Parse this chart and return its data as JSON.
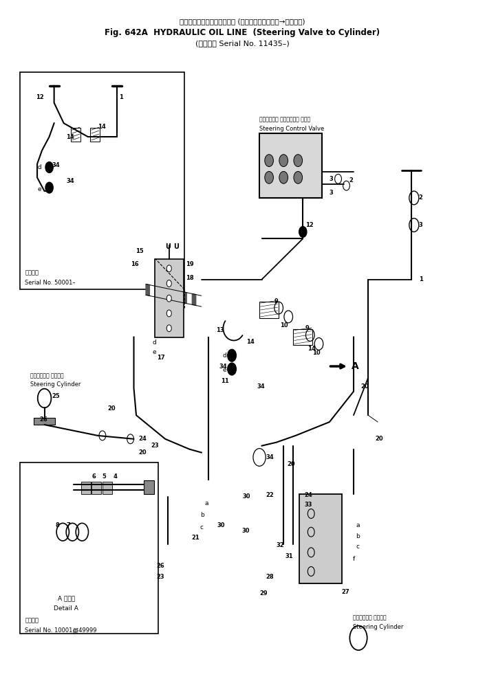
{
  "title_line1": "ハイドロリックオイルライン (ステアリングバルブ→シリンダ)",
  "title_line2": "Fig. 642A  HYDRAULIC OIL LINE  (Steering Valve to Cylinder)",
  "title_line3": "(適用号機",
  "title_line4": "Serial No. 11435–)",
  "bg_color": "#ffffff",
  "line_color": "#000000",
  "fig_width": 7.05,
  "fig_height": 9.91,
  "dpi": 100,
  "inset1_label_jp": "適用号機",
  "inset1_label_en": "Serial No. 50001–",
  "inset2_label1_jp": "A 詳細図",
  "inset2_label1_en": "Detail A",
  "inset2_label2_jp": "適用号機",
  "inset2_label2_en": "Serial No. 10001∰49999",
  "steering_control_valve_jp": "ステアリング コントロール バルブ",
  "steering_control_valve_en": "Steering Control Valve",
  "steering_cylinder_jp": "ステアリング シリンダ",
  "steering_cylinder_en": "Steering Cylinder"
}
